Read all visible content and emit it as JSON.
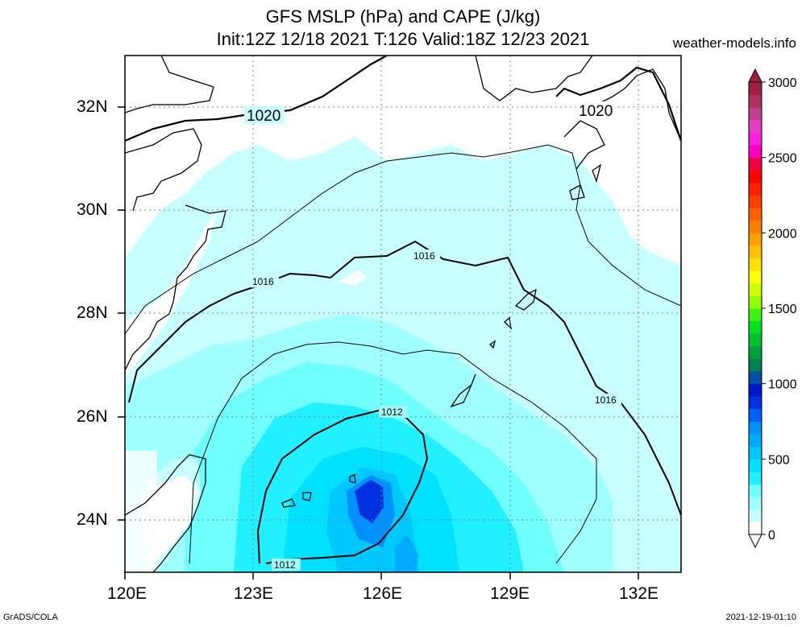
{
  "title_line1": "GFS MSLP (hPa) and CAPE (J/kg)",
  "title_line2": "Init:12Z 12/18 2021 T:126 Valid:18Z 12/23 2021",
  "site": "weather-models.info",
  "footer_left": "GrADS/COLA",
  "footer_right": "2021-12-19-01:10",
  "lon_labels": [
    "120E",
    "123E",
    "126E",
    "129E",
    "132E"
  ],
  "lat_labels": [
    "32N",
    "30N",
    "28N",
    "26N",
    "24N"
  ],
  "isobar_labels": [
    "1020",
    "1020",
    "1016",
    "1016",
    "1016",
    "1012",
    "1012"
  ],
  "colorbar": {
    "ticks": [
      "0",
      "500",
      "1000",
      "1500",
      "2000",
      "2500",
      "3000"
    ],
    "colors": [
      "#ffffff",
      "#c8ffff",
      "#a0ffff",
      "#70ffff",
      "#20f0ff",
      "#00e0ff",
      "#00c8ff",
      "#00aaff",
      "#0090ff",
      "#0060ff",
      "#0030e0",
      "#0018c8",
      "#004fa0",
      "#008050",
      "#00a040",
      "#00c030",
      "#00e020",
      "#40f010",
      "#90ff00",
      "#d0ff00",
      "#ffff00",
      "#ffe000",
      "#ffc000",
      "#ffa000",
      "#ff8000",
      "#ff6000",
      "#ff4000",
      "#ff2000",
      "#ff0000",
      "#f00040",
      "#ff00c0",
      "#ff20e0",
      "#e040c0",
      "#c04090",
      "#b03060",
      "#a02040"
    ]
  },
  "colors": {
    "land_line": "#000000",
    "grid": "#808080"
  }
}
